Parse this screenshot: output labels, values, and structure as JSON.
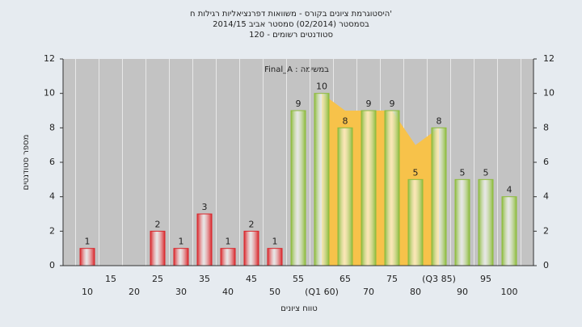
{
  "chart_data": {
    "type": "bar",
    "title": [
      "היסטוגרמת ציונים בקורס - משוואות דפרנציאליות רגילות ח'",
      "בסמסטר  (02/2014)  סמסטר אביב 2014/15",
      "סטודנטים רשומים - 120"
    ],
    "annotation": "Final_A : במשימה",
    "x_label": "טווח ציונים",
    "y_label": "מספר סטודנטים",
    "categories": [
      "10",
      "15",
      "20",
      "25",
      "30",
      "35",
      "40",
      "45",
      "50",
      "55",
      "(Q1 60)",
      "65",
      "70",
      "75",
      "80",
      "(Q3 85)",
      "90",
      "95",
      "100"
    ],
    "values": [
      1,
      0,
      0,
      2,
      1,
      3,
      1,
      2,
      1,
      9,
      10,
      8,
      9,
      9,
      5,
      8,
      5,
      5,
      4
    ],
    "colors": [
      "#d9262b",
      "#d9262b",
      "#d9262b",
      "#d9262b",
      "#d9262b",
      "#d9262b",
      "#d9262b",
      "#d9262b",
      "#d9262b",
      "#8dbb3c",
      "#8dbb3c",
      "#8dbb3c",
      "#8dbb3c",
      "#8dbb3c",
      "#8dbb3c",
      "#8dbb3c",
      "#8dbb3c",
      "#8dbb3c",
      "#8dbb3c"
    ],
    "area": {
      "color": "#f7c24a",
      "values": [
        null,
        null,
        null,
        null,
        null,
        null,
        null,
        null,
        null,
        null,
        10,
        9,
        9,
        9,
        7,
        8,
        null,
        null,
        null
      ]
    },
    "ylim": [
      0,
      12
    ],
    "yticks": [
      0,
      2,
      4,
      6,
      8,
      10,
      12
    ],
    "y2lim": [
      0,
      12
    ],
    "y2ticks": [
      0,
      2,
      4,
      6,
      8,
      10,
      12
    ]
  }
}
